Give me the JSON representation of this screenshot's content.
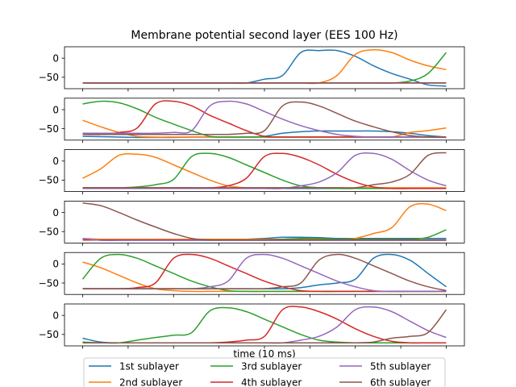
{
  "chart_data": {
    "type": "line",
    "title": "Membrane potential second layer (EES 100 Hz)",
    "xlabel": "time (10 ms)",
    "ylabel": "",
    "x": [
      0,
      1,
      2,
      3,
      4,
      5,
      6,
      7,
      8,
      9,
      10,
      11,
      12,
      13,
      14,
      15,
      16,
      17,
      18,
      19,
      20
    ],
    "xlim": [
      -1,
      21
    ],
    "ylim": [
      -80,
      30
    ],
    "yticks": [
      0,
      -50
    ],
    "grid": false,
    "legend": {
      "placement": "bottom-center",
      "columns": 3
    },
    "colors": {
      "1st sublayer": "#1f77b4",
      "2nd sublayer": "#ff7f0e",
      "3rd sublayer": "#2ca02c",
      "4th sublayer": "#d62728",
      "5th sublayer": "#9467bd",
      "6th sublayer": "#8c564b"
    },
    "panels": [
      {
        "series": [
          {
            "name": "1st sublayer",
            "values": [
              -65,
              -65,
              -65,
              -65,
              -65,
              -65,
              -65,
              -65,
              -65,
              -65,
              -55,
              -45,
              15,
              20,
              20,
              5,
              -20,
              -40,
              -55,
              -70,
              -73
            ]
          },
          {
            "name": "2nd sublayer",
            "values": [
              -65,
              -65,
              -65,
              -65,
              -65,
              -65,
              -65,
              -65,
              -65,
              -65,
              -65,
              -65,
              -65,
              -65,
              -45,
              10,
              22,
              15,
              -5,
              -20,
              -30
            ]
          },
          {
            "name": "3rd sublayer",
            "values": [
              -65,
              -65,
              -65,
              -65,
              -65,
              -65,
              -65,
              -65,
              -65,
              -65,
              -65,
              -65,
              -65,
              -65,
              -65,
              -65,
              -65,
              -65,
              -60,
              -40,
              15
            ]
          },
          {
            "name": "4th sublayer",
            "values": [
              -65,
              -65,
              -65,
              -65,
              -65,
              -65,
              -65,
              -65,
              -65,
              -65,
              -65,
              -65,
              -65,
              -65,
              -65,
              -65,
              -65,
              -65,
              -65,
              -65,
              -65
            ]
          },
          {
            "name": "5th sublayer",
            "values": [
              -65,
              -65,
              -65,
              -65,
              -65,
              -65,
              -65,
              -65,
              -65,
              -65,
              -65,
              -65,
              -65,
              -65,
              -65,
              -65,
              -65,
              -65,
              -65,
              -65,
              -65
            ]
          },
          {
            "name": "6th sublayer",
            "values": [
              -65,
              -65,
              -65,
              -65,
              -65,
              -65,
              -65,
              -65,
              -65,
              -65,
              -65,
              -65,
              -65,
              -65,
              -65,
              -65,
              -65,
              -65,
              -65,
              -65,
              -65
            ]
          }
        ]
      },
      {
        "series": [
          {
            "name": "1st sublayer",
            "values": [
              -70,
              -71,
              -72,
              -73,
              -73,
              -73,
              -72,
              -72,
              -72,
              -72,
              -70,
              -62,
              -58,
              -56,
              -56,
              -56,
              -56,
              -58,
              -62,
              -68,
              -72
            ]
          },
          {
            "name": "2nd sublayer",
            "values": [
              -28,
              -45,
              -60,
              -70,
              -72,
              -72,
              -72,
              -72,
              -72,
              -72,
              -72,
              -72,
              -72,
              -72,
              -72,
              -72,
              -72,
              -72,
              -60,
              -55,
              -48
            ]
          },
          {
            "name": "3rd sublayer",
            "values": [
              15,
              22,
              18,
              2,
              -20,
              -38,
              -55,
              -70,
              -72,
              -72,
              -72,
              -72,
              -72,
              -72,
              -72,
              -72,
              -72,
              -72,
              -72,
              -72,
              -72
            ]
          },
          {
            "name": "4th sublayer",
            "values": [
              -65,
              -65,
              -60,
              -48,
              15,
              22,
              10,
              -15,
              -35,
              -55,
              -70,
              -72,
              -72,
              -72,
              -72,
              -72,
              -72,
              -72,
              -72,
              -72,
              -72
            ]
          },
          {
            "name": "5th sublayer",
            "values": [
              -62,
              -62,
              -62,
              -62,
              -62,
              -60,
              -55,
              10,
              22,
              15,
              -5,
              -25,
              -42,
              -55,
              -65,
              -70,
              -72,
              -72,
              -72,
              -72,
              -72
            ]
          },
          {
            "name": "6th sublayer",
            "values": [
              -65,
              -65,
              -65,
              -65,
              -65,
              -65,
              -65,
              -65,
              -65,
              -62,
              -55,
              10,
              20,
              10,
              -10,
              -30,
              -45,
              -58,
              -68,
              -72,
              -73
            ]
          }
        ]
      },
      {
        "series": [
          {
            "name": "1st sublayer",
            "values": [
              -72,
              -72,
              -72,
              -72,
              -72,
              -72,
              -72,
              -72,
              -72,
              -72,
              -72,
              -72,
              -72,
              -72,
              -72,
              -72,
              -72,
              -72,
              -72,
              -72,
              -72
            ]
          },
          {
            "name": "2nd sublayer",
            "values": [
              -45,
              -20,
              15,
              18,
              10,
              -10,
              -30,
              -50,
              -65,
              -70,
              -70,
              -70,
              -70,
              -70,
              -70,
              -70,
              -70,
              -70,
              -70,
              -70,
              -70
            ]
          },
          {
            "name": "3rd sublayer",
            "values": [
              -70,
              -70,
              -70,
              -68,
              -62,
              -48,
              12,
              20,
              10,
              -10,
              -30,
              -50,
              -65,
              -70,
              -72,
              -72,
              -72,
              -72,
              -72,
              -72,
              -72
            ]
          },
          {
            "name": "4th sublayer",
            "values": [
              -70,
              -70,
              -70,
              -70,
              -70,
              -70,
              -70,
              -70,
              -65,
              -45,
              12,
              20,
              10,
              -10,
              -35,
              -55,
              -68,
              -72,
              -72,
              -72,
              -72
            ]
          },
          {
            "name": "5th sublayer",
            "values": [
              -72,
              -72,
              -72,
              -72,
              -72,
              -72,
              -72,
              -72,
              -72,
              -72,
              -72,
              -72,
              -65,
              -55,
              -30,
              15,
              20,
              5,
              -25,
              -50,
              -65
            ]
          },
          {
            "name": "6th sublayer",
            "values": [
              -70,
              -70,
              -70,
              -70,
              -70,
              -70,
              -70,
              -70,
              -70,
              -70,
              -70,
              -70,
              -70,
              -70,
              -70,
              -70,
              -62,
              -55,
              -35,
              15,
              22
            ]
          }
        ]
      },
      {
        "series": [
          {
            "name": "1st sublayer",
            "values": [
              -72,
              -72,
              -72,
              -72,
              -72,
              -72,
              -72,
              -72,
              -72,
              -70,
              -68,
              -65,
              -65,
              -66,
              -68,
              -68,
              -68,
              -68,
              -68,
              -68,
              -68
            ]
          },
          {
            "name": "2nd sublayer",
            "values": [
              -68,
              -70,
              -70,
              -70,
              -70,
              -70,
              -70,
              -70,
              -70,
              -70,
              -70,
              -70,
              -70,
              -70,
              -70,
              -68,
              -55,
              -40,
              15,
              22,
              5
            ]
          },
          {
            "name": "3rd sublayer",
            "values": [
              -72,
              -72,
              -72,
              -72,
              -72,
              -72,
              -72,
              -72,
              -72,
              -72,
              -72,
              -70,
              -68,
              -68,
              -70,
              -70,
              -70,
              -70,
              -70,
              -65,
              -45
            ]
          },
          {
            "name": "4th sublayer",
            "values": [
              -72,
              -72,
              -72,
              -72,
              -72,
              -72,
              -72,
              -72,
              -72,
              -72,
              -72,
              -72,
              -72,
              -72,
              -72,
              -72,
              -72,
              -72,
              -72,
              -72,
              -72
            ]
          },
          {
            "name": "5th sublayer",
            "values": [
              -68,
              -73,
              -73,
              -73,
              -73,
              -73,
              -73,
              -73,
              -73,
              -73,
              -73,
              -73,
              -73,
              -73,
              -73,
              -73,
              -73,
              -73,
              -73,
              -73,
              -73
            ]
          },
          {
            "name": "6th sublayer",
            "values": [
              25,
              18,
              0,
              -20,
              -38,
              -55,
              -68,
              -72,
              -72,
              -72,
              -72,
              -72,
              -72,
              -72,
              -72,
              -72,
              -72,
              -72,
              -72,
              -72,
              -72
            ]
          }
        ]
      },
      {
        "series": [
          {
            "name": "1st sublayer",
            "values": [
              -65,
              -65,
              -65,
              -65,
              -65,
              -65,
              -65,
              -65,
              -65,
              -65,
              -65,
              -65,
              -62,
              -55,
              -50,
              -40,
              15,
              25,
              10,
              -25,
              -60
            ]
          },
          {
            "name": "2nd sublayer",
            "values": [
              5,
              -10,
              -30,
              -50,
              -65,
              -70,
              -72,
              -72,
              -72,
              -72,
              -72,
              -72,
              -72,
              -72,
              -72,
              -72,
              -72,
              -72,
              -72,
              -72,
              -72
            ]
          },
          {
            "name": "3rd sublayer",
            "values": [
              -40,
              15,
              25,
              15,
              -5,
              -25,
              -45,
              -60,
              -70,
              -72,
              -72,
              -72,
              -72,
              -72,
              -72,
              -72,
              -72,
              -72,
              -72,
              -72,
              -72
            ]
          },
          {
            "name": "4th sublayer",
            "values": [
              -65,
              -65,
              -65,
              -62,
              -50,
              15,
              25,
              15,
              -5,
              -25,
              -45,
              -60,
              -70,
              -72,
              -72,
              -72,
              -72,
              -72,
              -72,
              -72,
              -72
            ]
          },
          {
            "name": "5th sublayer",
            "values": [
              -65,
              -65,
              -65,
              -65,
              -65,
              -65,
              -65,
              -60,
              -45,
              15,
              25,
              15,
              -5,
              -25,
              -45,
              -60,
              -70,
              -72,
              -72,
              -72,
              -72
            ]
          },
          {
            "name": "6th sublayer",
            "values": [
              -65,
              -65,
              -65,
              -65,
              -65,
              -65,
              -65,
              -65,
              -65,
              -65,
              -65,
              -60,
              -50,
              10,
              25,
              15,
              -5,
              -25,
              -45,
              -60,
              -70
            ]
          }
        ]
      },
      {
        "series": [
          {
            "name": "1st sublayer",
            "values": [
              -60,
              -70,
              -72,
              -72,
              -72,
              -72,
              -72,
              -72,
              -72,
              -72,
              -72,
              -72,
              -72,
              -72,
              -72,
              -72,
              -72,
              -72,
              -72,
              -72,
              -72
            ]
          },
          {
            "name": "2nd sublayer",
            "values": [
              -72,
              -72,
              -72,
              -72,
              -72,
              -72,
              -72,
              -72,
              -72,
              -72,
              -72,
              -72,
              -72,
              -72,
              -72,
              -72,
              -72,
              -72,
              -72,
              -72,
              -72
            ]
          },
          {
            "name": "3rd sublayer",
            "values": [
              -70,
              -72,
              -72,
              -65,
              -58,
              -52,
              -45,
              12,
              20,
              10,
              -10,
              -30,
              -50,
              -65,
              -70,
              -72,
              -72,
              -72,
              -72,
              -72,
              -72
            ]
          },
          {
            "name": "4th sublayer",
            "values": [
              -72,
              -72,
              -72,
              -72,
              -72,
              -72,
              -72,
              -72,
              -70,
              -65,
              -55,
              15,
              22,
              10,
              -10,
              -35,
              -55,
              -68,
              -72,
              -72,
              -72
            ]
          },
          {
            "name": "5th sublayer",
            "values": [
              -72,
              -72,
              -72,
              -72,
              -72,
              -72,
              -72,
              -72,
              -72,
              -72,
              -72,
              -72,
              -65,
              -55,
              -30,
              15,
              22,
              10,
              -15,
              -40,
              -58
            ]
          },
          {
            "name": "6th sublayer",
            "values": [
              -72,
              -72,
              -72,
              -72,
              -72,
              -72,
              -72,
              -72,
              -72,
              -72,
              -72,
              -72,
              -72,
              -72,
              -72,
              -72,
              -70,
              -60,
              -55,
              -45,
              15
            ]
          }
        ]
      }
    ]
  }
}
